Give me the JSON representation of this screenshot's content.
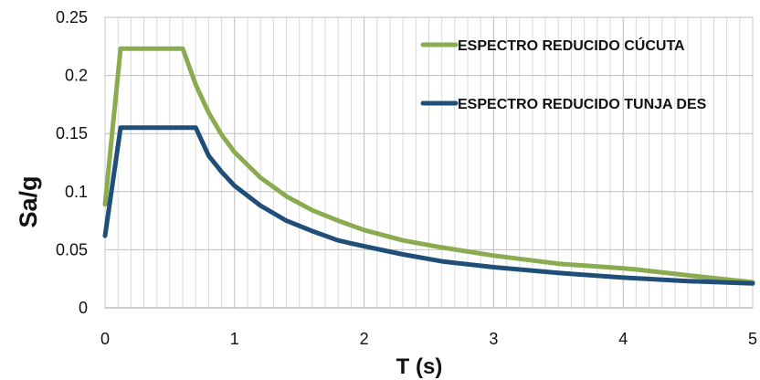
{
  "chart_data": {
    "type": "line",
    "title": "",
    "xlabel": "T (s)",
    "ylabel": "Sa/g",
    "xlim": [
      0,
      5
    ],
    "ylim": [
      0,
      0.25
    ],
    "x_ticks": [
      "0",
      "1",
      "2",
      "3",
      "4",
      "5"
    ],
    "y_ticks": [
      "0",
      "0.05",
      "0.1",
      "0.15",
      "0.2",
      "0.25"
    ],
    "grid": true,
    "legend_position": "top-right",
    "series": [
      {
        "name": "ESPECTRO REDUCIDO CÚCUTA",
        "color": "#8aab4f",
        "x": [
          0,
          0.12,
          0.2,
          0.3,
          0.4,
          0.5,
          0.6,
          0.7,
          0.8,
          0.9,
          1.0,
          1.2,
          1.4,
          1.6,
          1.8,
          2.0,
          2.3,
          2.6,
          3.0,
          3.5,
          4.0,
          4.1,
          4.5,
          5.0
        ],
        "y": [
          0.089,
          0.223,
          0.223,
          0.223,
          0.223,
          0.223,
          0.223,
          0.192,
          0.168,
          0.149,
          0.134,
          0.112,
          0.096,
          0.084,
          0.075,
          0.067,
          0.058,
          0.052,
          0.045,
          0.038,
          0.034,
          0.033,
          0.028,
          0.022
        ]
      },
      {
        "name": "ESPECTRO REDUCIDO TUNJA DES",
        "color": "#1f4e79",
        "x": [
          0,
          0.12,
          0.2,
          0.3,
          0.4,
          0.5,
          0.6,
          0.7,
          0.8,
          0.9,
          1.0,
          1.2,
          1.4,
          1.6,
          1.8,
          2.0,
          2.3,
          2.6,
          3.0,
          3.5,
          4.0,
          4.5,
          5.0
        ],
        "y": [
          0.062,
          0.155,
          0.155,
          0.155,
          0.155,
          0.155,
          0.155,
          0.155,
          0.131,
          0.117,
          0.105,
          0.088,
          0.075,
          0.066,
          0.058,
          0.053,
          0.046,
          0.04,
          0.035,
          0.03,
          0.026,
          0.023,
          0.021
        ]
      }
    ]
  }
}
